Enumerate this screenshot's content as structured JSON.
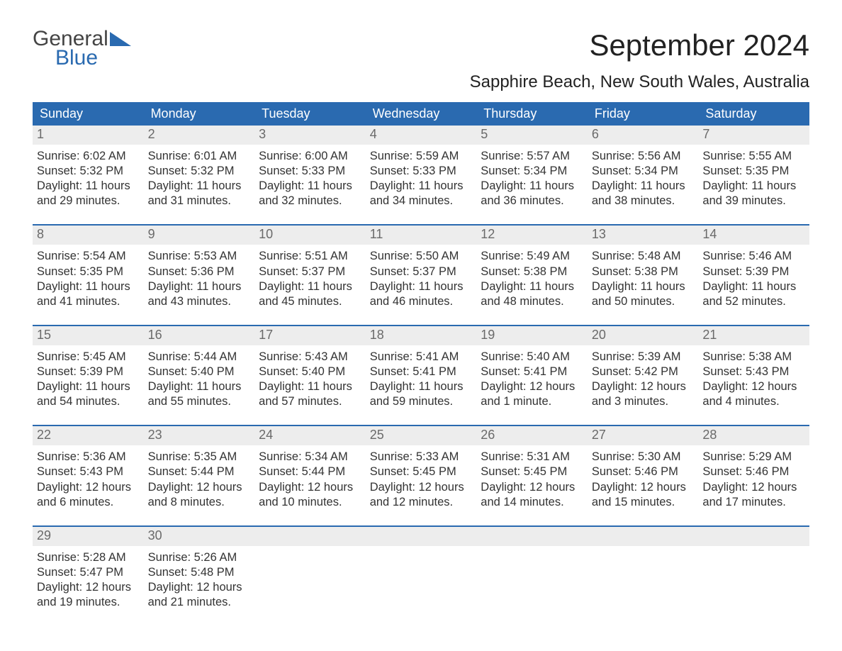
{
  "logo": {
    "general": "General",
    "blue": "Blue"
  },
  "title": "September 2024",
  "location": "Sapphire Beach, New South Wales, Australia",
  "colors": {
    "header_bg": "#2a6ab0",
    "header_text": "#ffffff",
    "daynum_bg": "#ededed",
    "daynum_text": "#6a6a6a",
    "body_text": "#333333",
    "rule": "#2a6ab0",
    "logo_general": "#444444",
    "logo_blue": "#2a6ab0",
    "page_bg": "#ffffff"
  },
  "typography": {
    "title_fontsize": 42,
    "location_fontsize": 24,
    "weekday_fontsize": 18,
    "daynum_fontsize": 18,
    "body_fontsize": 16.5,
    "font_family": "Arial"
  },
  "weekdays": [
    "Sunday",
    "Monday",
    "Tuesday",
    "Wednesday",
    "Thursday",
    "Friday",
    "Saturday"
  ],
  "weeks": [
    [
      {
        "n": "1",
        "sunrise": "Sunrise: 6:02 AM",
        "sunset": "Sunset: 5:32 PM",
        "d1": "Daylight: 11 hours",
        "d2": "and 29 minutes."
      },
      {
        "n": "2",
        "sunrise": "Sunrise: 6:01 AM",
        "sunset": "Sunset: 5:32 PM",
        "d1": "Daylight: 11 hours",
        "d2": "and 31 minutes."
      },
      {
        "n": "3",
        "sunrise": "Sunrise: 6:00 AM",
        "sunset": "Sunset: 5:33 PM",
        "d1": "Daylight: 11 hours",
        "d2": "and 32 minutes."
      },
      {
        "n": "4",
        "sunrise": "Sunrise: 5:59 AM",
        "sunset": "Sunset: 5:33 PM",
        "d1": "Daylight: 11 hours",
        "d2": "and 34 minutes."
      },
      {
        "n": "5",
        "sunrise": "Sunrise: 5:57 AM",
        "sunset": "Sunset: 5:34 PM",
        "d1": "Daylight: 11 hours",
        "d2": "and 36 minutes."
      },
      {
        "n": "6",
        "sunrise": "Sunrise: 5:56 AM",
        "sunset": "Sunset: 5:34 PM",
        "d1": "Daylight: 11 hours",
        "d2": "and 38 minutes."
      },
      {
        "n": "7",
        "sunrise": "Sunrise: 5:55 AM",
        "sunset": "Sunset: 5:35 PM",
        "d1": "Daylight: 11 hours",
        "d2": "and 39 minutes."
      }
    ],
    [
      {
        "n": "8",
        "sunrise": "Sunrise: 5:54 AM",
        "sunset": "Sunset: 5:35 PM",
        "d1": "Daylight: 11 hours",
        "d2": "and 41 minutes."
      },
      {
        "n": "9",
        "sunrise": "Sunrise: 5:53 AM",
        "sunset": "Sunset: 5:36 PM",
        "d1": "Daylight: 11 hours",
        "d2": "and 43 minutes."
      },
      {
        "n": "10",
        "sunrise": "Sunrise: 5:51 AM",
        "sunset": "Sunset: 5:37 PM",
        "d1": "Daylight: 11 hours",
        "d2": "and 45 minutes."
      },
      {
        "n": "11",
        "sunrise": "Sunrise: 5:50 AM",
        "sunset": "Sunset: 5:37 PM",
        "d1": "Daylight: 11 hours",
        "d2": "and 46 minutes."
      },
      {
        "n": "12",
        "sunrise": "Sunrise: 5:49 AM",
        "sunset": "Sunset: 5:38 PM",
        "d1": "Daylight: 11 hours",
        "d2": "and 48 minutes."
      },
      {
        "n": "13",
        "sunrise": "Sunrise: 5:48 AM",
        "sunset": "Sunset: 5:38 PM",
        "d1": "Daylight: 11 hours",
        "d2": "and 50 minutes."
      },
      {
        "n": "14",
        "sunrise": "Sunrise: 5:46 AM",
        "sunset": "Sunset: 5:39 PM",
        "d1": "Daylight: 11 hours",
        "d2": "and 52 minutes."
      }
    ],
    [
      {
        "n": "15",
        "sunrise": "Sunrise: 5:45 AM",
        "sunset": "Sunset: 5:39 PM",
        "d1": "Daylight: 11 hours",
        "d2": "and 54 minutes."
      },
      {
        "n": "16",
        "sunrise": "Sunrise: 5:44 AM",
        "sunset": "Sunset: 5:40 PM",
        "d1": "Daylight: 11 hours",
        "d2": "and 55 minutes."
      },
      {
        "n": "17",
        "sunrise": "Sunrise: 5:43 AM",
        "sunset": "Sunset: 5:40 PM",
        "d1": "Daylight: 11 hours",
        "d2": "and 57 minutes."
      },
      {
        "n": "18",
        "sunrise": "Sunrise: 5:41 AM",
        "sunset": "Sunset: 5:41 PM",
        "d1": "Daylight: 11 hours",
        "d2": "and 59 minutes."
      },
      {
        "n": "19",
        "sunrise": "Sunrise: 5:40 AM",
        "sunset": "Sunset: 5:41 PM",
        "d1": "Daylight: 12 hours",
        "d2": "and 1 minute."
      },
      {
        "n": "20",
        "sunrise": "Sunrise: 5:39 AM",
        "sunset": "Sunset: 5:42 PM",
        "d1": "Daylight: 12 hours",
        "d2": "and 3 minutes."
      },
      {
        "n": "21",
        "sunrise": "Sunrise: 5:38 AM",
        "sunset": "Sunset: 5:43 PM",
        "d1": "Daylight: 12 hours",
        "d2": "and 4 minutes."
      }
    ],
    [
      {
        "n": "22",
        "sunrise": "Sunrise: 5:36 AM",
        "sunset": "Sunset: 5:43 PM",
        "d1": "Daylight: 12 hours",
        "d2": "and 6 minutes."
      },
      {
        "n": "23",
        "sunrise": "Sunrise: 5:35 AM",
        "sunset": "Sunset: 5:44 PM",
        "d1": "Daylight: 12 hours",
        "d2": "and 8 minutes."
      },
      {
        "n": "24",
        "sunrise": "Sunrise: 5:34 AM",
        "sunset": "Sunset: 5:44 PM",
        "d1": "Daylight: 12 hours",
        "d2": "and 10 minutes."
      },
      {
        "n": "25",
        "sunrise": "Sunrise: 5:33 AM",
        "sunset": "Sunset: 5:45 PM",
        "d1": "Daylight: 12 hours",
        "d2": "and 12 minutes."
      },
      {
        "n": "26",
        "sunrise": "Sunrise: 5:31 AM",
        "sunset": "Sunset: 5:45 PM",
        "d1": "Daylight: 12 hours",
        "d2": "and 14 minutes."
      },
      {
        "n": "27",
        "sunrise": "Sunrise: 5:30 AM",
        "sunset": "Sunset: 5:46 PM",
        "d1": "Daylight: 12 hours",
        "d2": "and 15 minutes."
      },
      {
        "n": "28",
        "sunrise": "Sunrise: 5:29 AM",
        "sunset": "Sunset: 5:46 PM",
        "d1": "Daylight: 12 hours",
        "d2": "and 17 minutes."
      }
    ],
    [
      {
        "n": "29",
        "sunrise": "Sunrise: 5:28 AM",
        "sunset": "Sunset: 5:47 PM",
        "d1": "Daylight: 12 hours",
        "d2": "and 19 minutes."
      },
      {
        "n": "30",
        "sunrise": "Sunrise: 5:26 AM",
        "sunset": "Sunset: 5:48 PM",
        "d1": "Daylight: 12 hours",
        "d2": "and 21 minutes."
      },
      null,
      null,
      null,
      null,
      null
    ]
  ]
}
